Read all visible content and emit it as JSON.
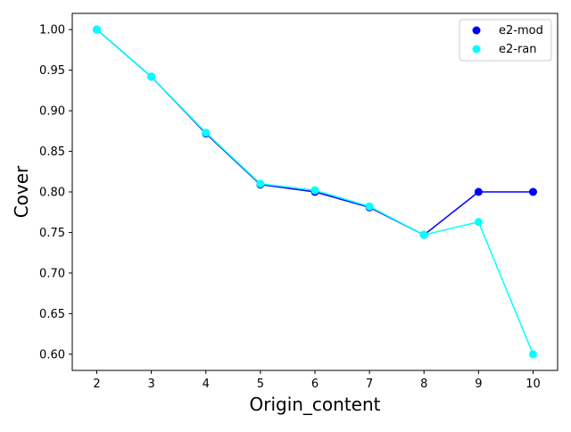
{
  "chart_data": {
    "type": "line",
    "title": "",
    "xlabel": "Origin_content",
    "ylabel": "Cover",
    "x": [
      2,
      3,
      4,
      5,
      6,
      7,
      8,
      9,
      10
    ],
    "xlim": [
      1.55,
      10.45
    ],
    "ylim": [
      0.58,
      1.02
    ],
    "xticks": [
      2,
      3,
      4,
      5,
      6,
      7,
      8,
      9,
      10
    ],
    "yticks": [
      0.6,
      0.65,
      0.7,
      0.75,
      0.8,
      0.85,
      0.9,
      0.95,
      1.0
    ],
    "ytick_labels": [
      "0.60",
      "0.65",
      "0.70",
      "0.75",
      "0.80",
      "0.85",
      "0.90",
      "0.95",
      "1.00"
    ],
    "grid": false,
    "legend_position": "top-right",
    "series": [
      {
        "name": "e2-mod",
        "color": "#0000ff",
        "values": [
          1.0,
          0.942,
          0.872,
          0.809,
          0.8,
          0.781,
          0.747,
          0.8,
          0.8
        ]
      },
      {
        "name": "e2-ran",
        "color": "#00ffff",
        "values": [
          1.0,
          0.942,
          0.873,
          0.81,
          0.802,
          0.782,
          0.747,
          0.763,
          0.6
        ]
      }
    ]
  }
}
